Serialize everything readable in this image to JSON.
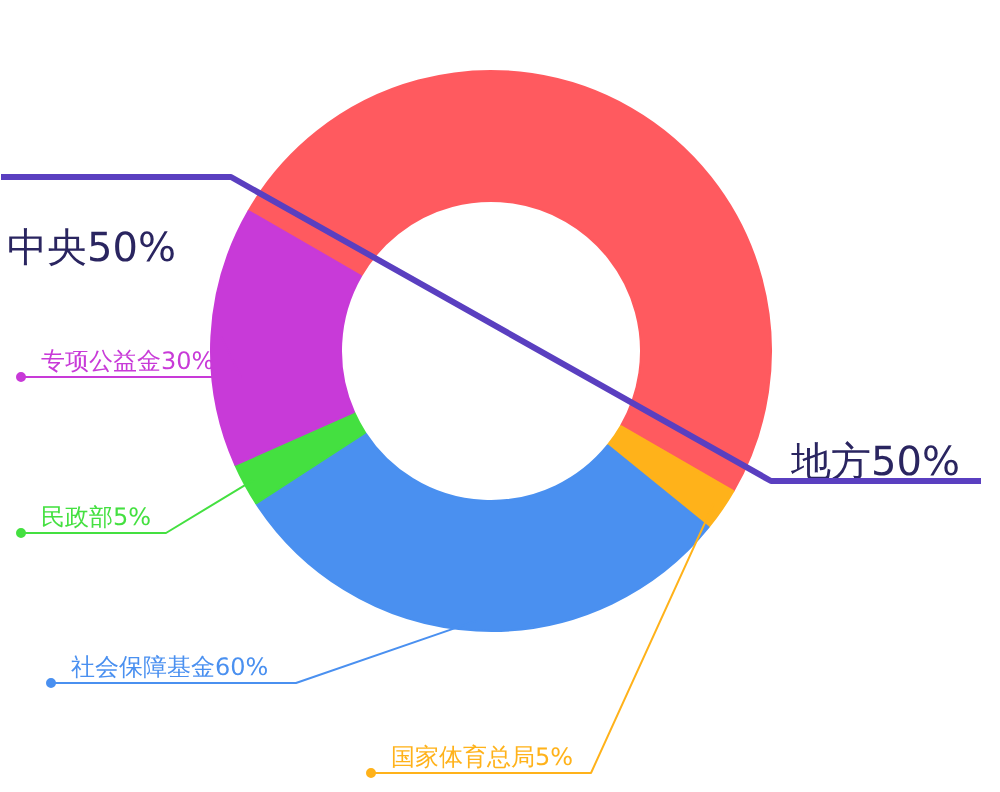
{
  "chart_data": {
    "type": "donut",
    "categories": [
      "地方50%",
      "国家体育总局5%",
      "社会保障基金60%",
      "民政部5%",
      "专项公益金30%"
    ],
    "values": [
      50,
      2.5,
      30,
      2.5,
      15
    ],
    "legend": "left",
    "colors": [
      "#ff5a5f",
      "#ffb21a",
      "#4a90f0",
      "#44e040",
      "#c83ad8"
    ],
    "annotations": [
      "中央50%"
    ]
  }
}
